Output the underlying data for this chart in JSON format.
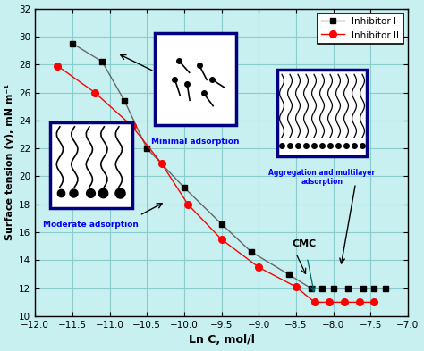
{
  "inhibitor_I_x": [
    -11.5,
    -11.1,
    -10.8,
    -10.5,
    -10.0,
    -9.5,
    -9.1,
    -8.6,
    -8.3,
    -8.15,
    -8.0,
    -7.8,
    -7.6,
    -7.45,
    -7.3
  ],
  "inhibitor_I_y": [
    29.5,
    28.2,
    25.4,
    22.0,
    19.2,
    16.6,
    14.6,
    13.0,
    12.0,
    12.0,
    12.0,
    12.0,
    12.0,
    12.0,
    12.0
  ],
  "inhibitor_II_x": [
    -11.7,
    -11.2,
    -10.7,
    -10.3,
    -9.95,
    -9.5,
    -9.0,
    -8.5,
    -8.25,
    -8.05,
    -7.85,
    -7.65,
    -7.45
  ],
  "inhibitor_II_y": [
    27.9,
    26.0,
    23.6,
    20.9,
    18.0,
    15.5,
    13.5,
    12.1,
    11.0,
    11.0,
    11.0,
    11.0,
    11.0
  ],
  "color_I": "#666666",
  "color_II": "#ff0000",
  "marker_I": "s",
  "marker_II": "o",
  "xlim": [
    -12.0,
    -7.0
  ],
  "ylim": [
    10,
    32
  ],
  "xticks": [
    -12.0,
    -11.5,
    -11.0,
    -10.5,
    -10.0,
    -9.5,
    -9.0,
    -8.5,
    -8.0,
    -7.5,
    -7.0
  ],
  "yticks": [
    10,
    12,
    14,
    16,
    18,
    20,
    22,
    24,
    26,
    28,
    30,
    32
  ],
  "xlabel": "Ln C, mol/l",
  "ylabel": "Surface tension (γ), mN m⁻¹",
  "bg_color": "#c8f0f0",
  "grid_color": "#88cccc",
  "legend_labels": [
    "Inhibitor I",
    "Inhibitor II"
  ],
  "cmc_label": "CMC",
  "minimal_ads_label": "Minimal adsorption",
  "moderate_ads_label": "Moderate adsorption",
  "aggregation_label": "Aggregation and multilayer\nadsorption"
}
